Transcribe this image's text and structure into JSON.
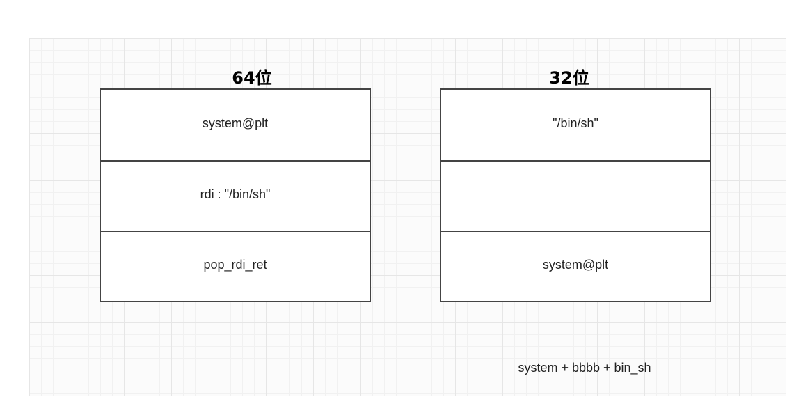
{
  "diagram": {
    "left_stack": {
      "title": "64位",
      "cells": [
        "system@plt",
        "rdi : \"/bin/sh\"",
        "pop_rdi_ret"
      ]
    },
    "right_stack": {
      "title": "32位",
      "cells": [
        "\"/bin/sh\"",
        "",
        "system@plt"
      ]
    },
    "note": "system + bbbb + bin_sh"
  },
  "colors": {
    "border": "#444444",
    "grid": "#e6e6e6",
    "background": "#ffffff"
  }
}
